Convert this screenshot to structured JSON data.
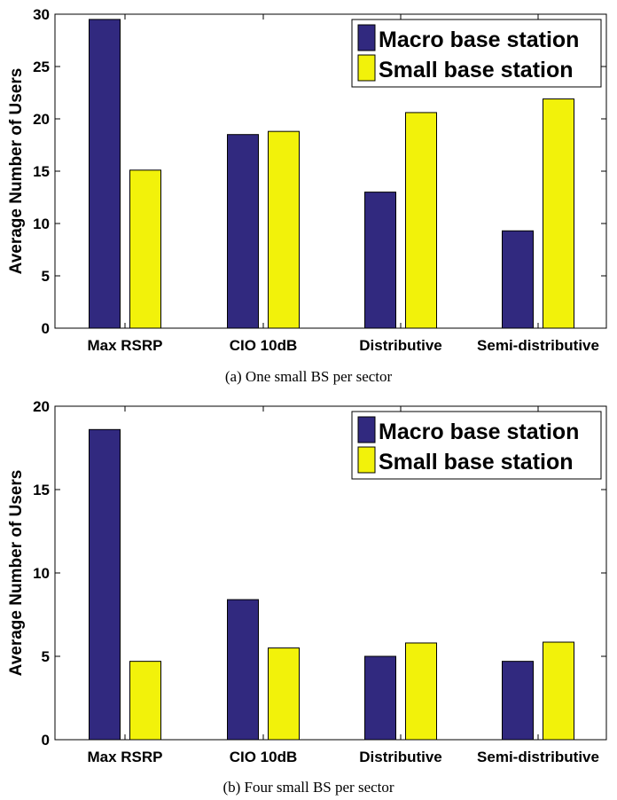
{
  "colors": {
    "macro": "#31297f",
    "small": "#f2f20a",
    "axis": "#000000"
  },
  "chart_data": [
    {
      "type": "bar",
      "caption": "(a) One small BS per sector",
      "categories": [
        "Max RSRP",
        "CIO 10dB",
        "Distributive",
        "Semi-distributive"
      ],
      "ylabel": "Average Number of Users",
      "ylim": [
        0,
        30
      ],
      "yticks": [
        0,
        5,
        10,
        15,
        20,
        25,
        30
      ],
      "legend_position": "top-right",
      "series": [
        {
          "name": "Macro base station",
          "values": [
            29.5,
            18.5,
            13.0,
            9.3
          ]
        },
        {
          "name": "Small base station",
          "values": [
            15.1,
            18.8,
            20.6,
            21.9
          ]
        }
      ]
    },
    {
      "type": "bar",
      "caption": "(b) Four small BS per sector",
      "categories": [
        "Max RSRP",
        "CIO 10dB",
        "Distributive",
        "Semi-distributive"
      ],
      "ylabel": "Average Number of Users",
      "ylim": [
        0,
        20
      ],
      "yticks": [
        0,
        5,
        10,
        15,
        20
      ],
      "legend_position": "top-right",
      "series": [
        {
          "name": "Macro base station",
          "values": [
            18.6,
            8.4,
            5.0,
            4.7
          ]
        },
        {
          "name": "Small base station",
          "values": [
            4.7,
            5.5,
            5.8,
            5.85
          ]
        }
      ]
    }
  ]
}
